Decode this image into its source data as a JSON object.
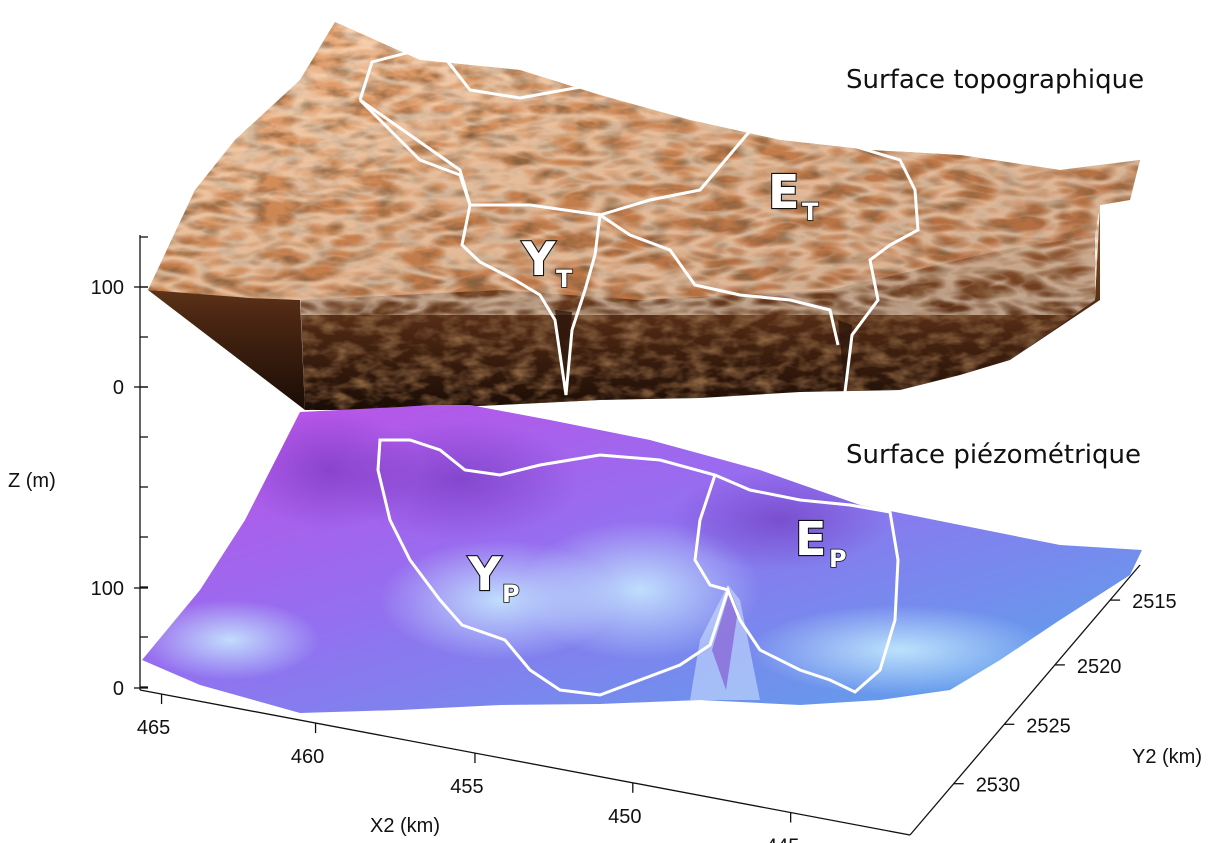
{
  "chart_data": {
    "type": "surface3d",
    "x_axis": {
      "label": "X2 (km)",
      "ticks": [
        465,
        460,
        455,
        450,
        445
      ]
    },
    "y_axis": {
      "label": "Y2 (km)",
      "ticks": [
        2515,
        2520,
        2525,
        2530
      ]
    },
    "z_axis": {
      "label": "Z (m)",
      "top_ticks": [
        100,
        0
      ],
      "bottom_ticks": [
        100,
        0
      ]
    },
    "surfaces": [
      {
        "name": "Surface topographique",
        "colormap": "copper",
        "colors": {
          "low": "#1f0f06",
          "mid": "#8a4f2a",
          "high": "#f6b98a"
        },
        "basins": [
          {
            "letter": "Y",
            "sub": "T"
          },
          {
            "letter": "E",
            "sub": "T"
          }
        ]
      },
      {
        "name": "Surface piézométrique",
        "colormap": "cool",
        "colors": {
          "low": "#4fb0e8",
          "mid": "#8f6ff0",
          "high": "#c24ee6"
        },
        "basins": [
          {
            "letter": "Y",
            "sub": "P"
          },
          {
            "letter": "E",
            "sub": "P"
          }
        ]
      }
    ],
    "basin_outline_color": "#ffffff"
  }
}
